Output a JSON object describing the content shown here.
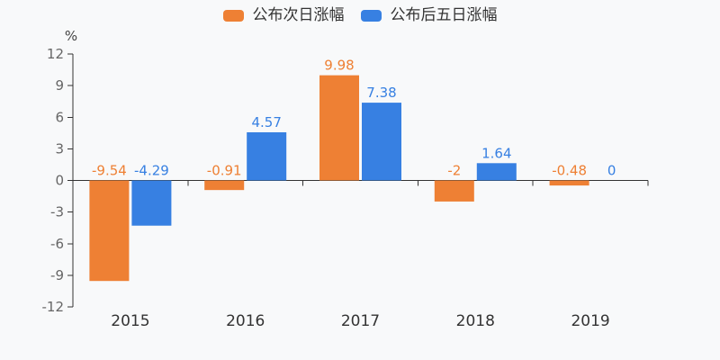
{
  "page": {
    "background": "#f8f9fa"
  },
  "legend": {
    "items": [
      {
        "label": "公布次日涨幅",
        "color": "#ee8034"
      },
      {
        "label": "公布后五日涨幅",
        "color": "#3780e2"
      }
    ]
  },
  "chart_data": {
    "type": "bar",
    "title": "",
    "ylabel": "%",
    "xlabel": "",
    "categories": [
      "2015",
      "2016",
      "2017",
      "2018",
      "2019"
    ],
    "series": [
      {
        "name": "公布次日涨幅",
        "color": "#ee8034",
        "values": [
          -9.54,
          -0.91,
          9.98,
          -2,
          -0.48
        ],
        "labels": [
          "-9.54",
          "-0.91",
          "9.98",
          "-2",
          "-0.48"
        ]
      },
      {
        "name": "公布后五日涨幅",
        "color": "#3780e2",
        "values": [
          -4.29,
          4.57,
          7.38,
          1.64,
          0
        ],
        "labels": [
          "-4.29",
          "4.57",
          "7.38",
          "1.64",
          "0"
        ]
      }
    ],
    "ylim": [
      -12,
      12
    ],
    "yticks": [
      12,
      9,
      6,
      3,
      0,
      -3,
      -6,
      -9,
      -12
    ],
    "grid": false,
    "legend_position": "top",
    "axis_color": "#333333",
    "tick_label_color": "#666666",
    "category_label_color": "#333333"
  }
}
